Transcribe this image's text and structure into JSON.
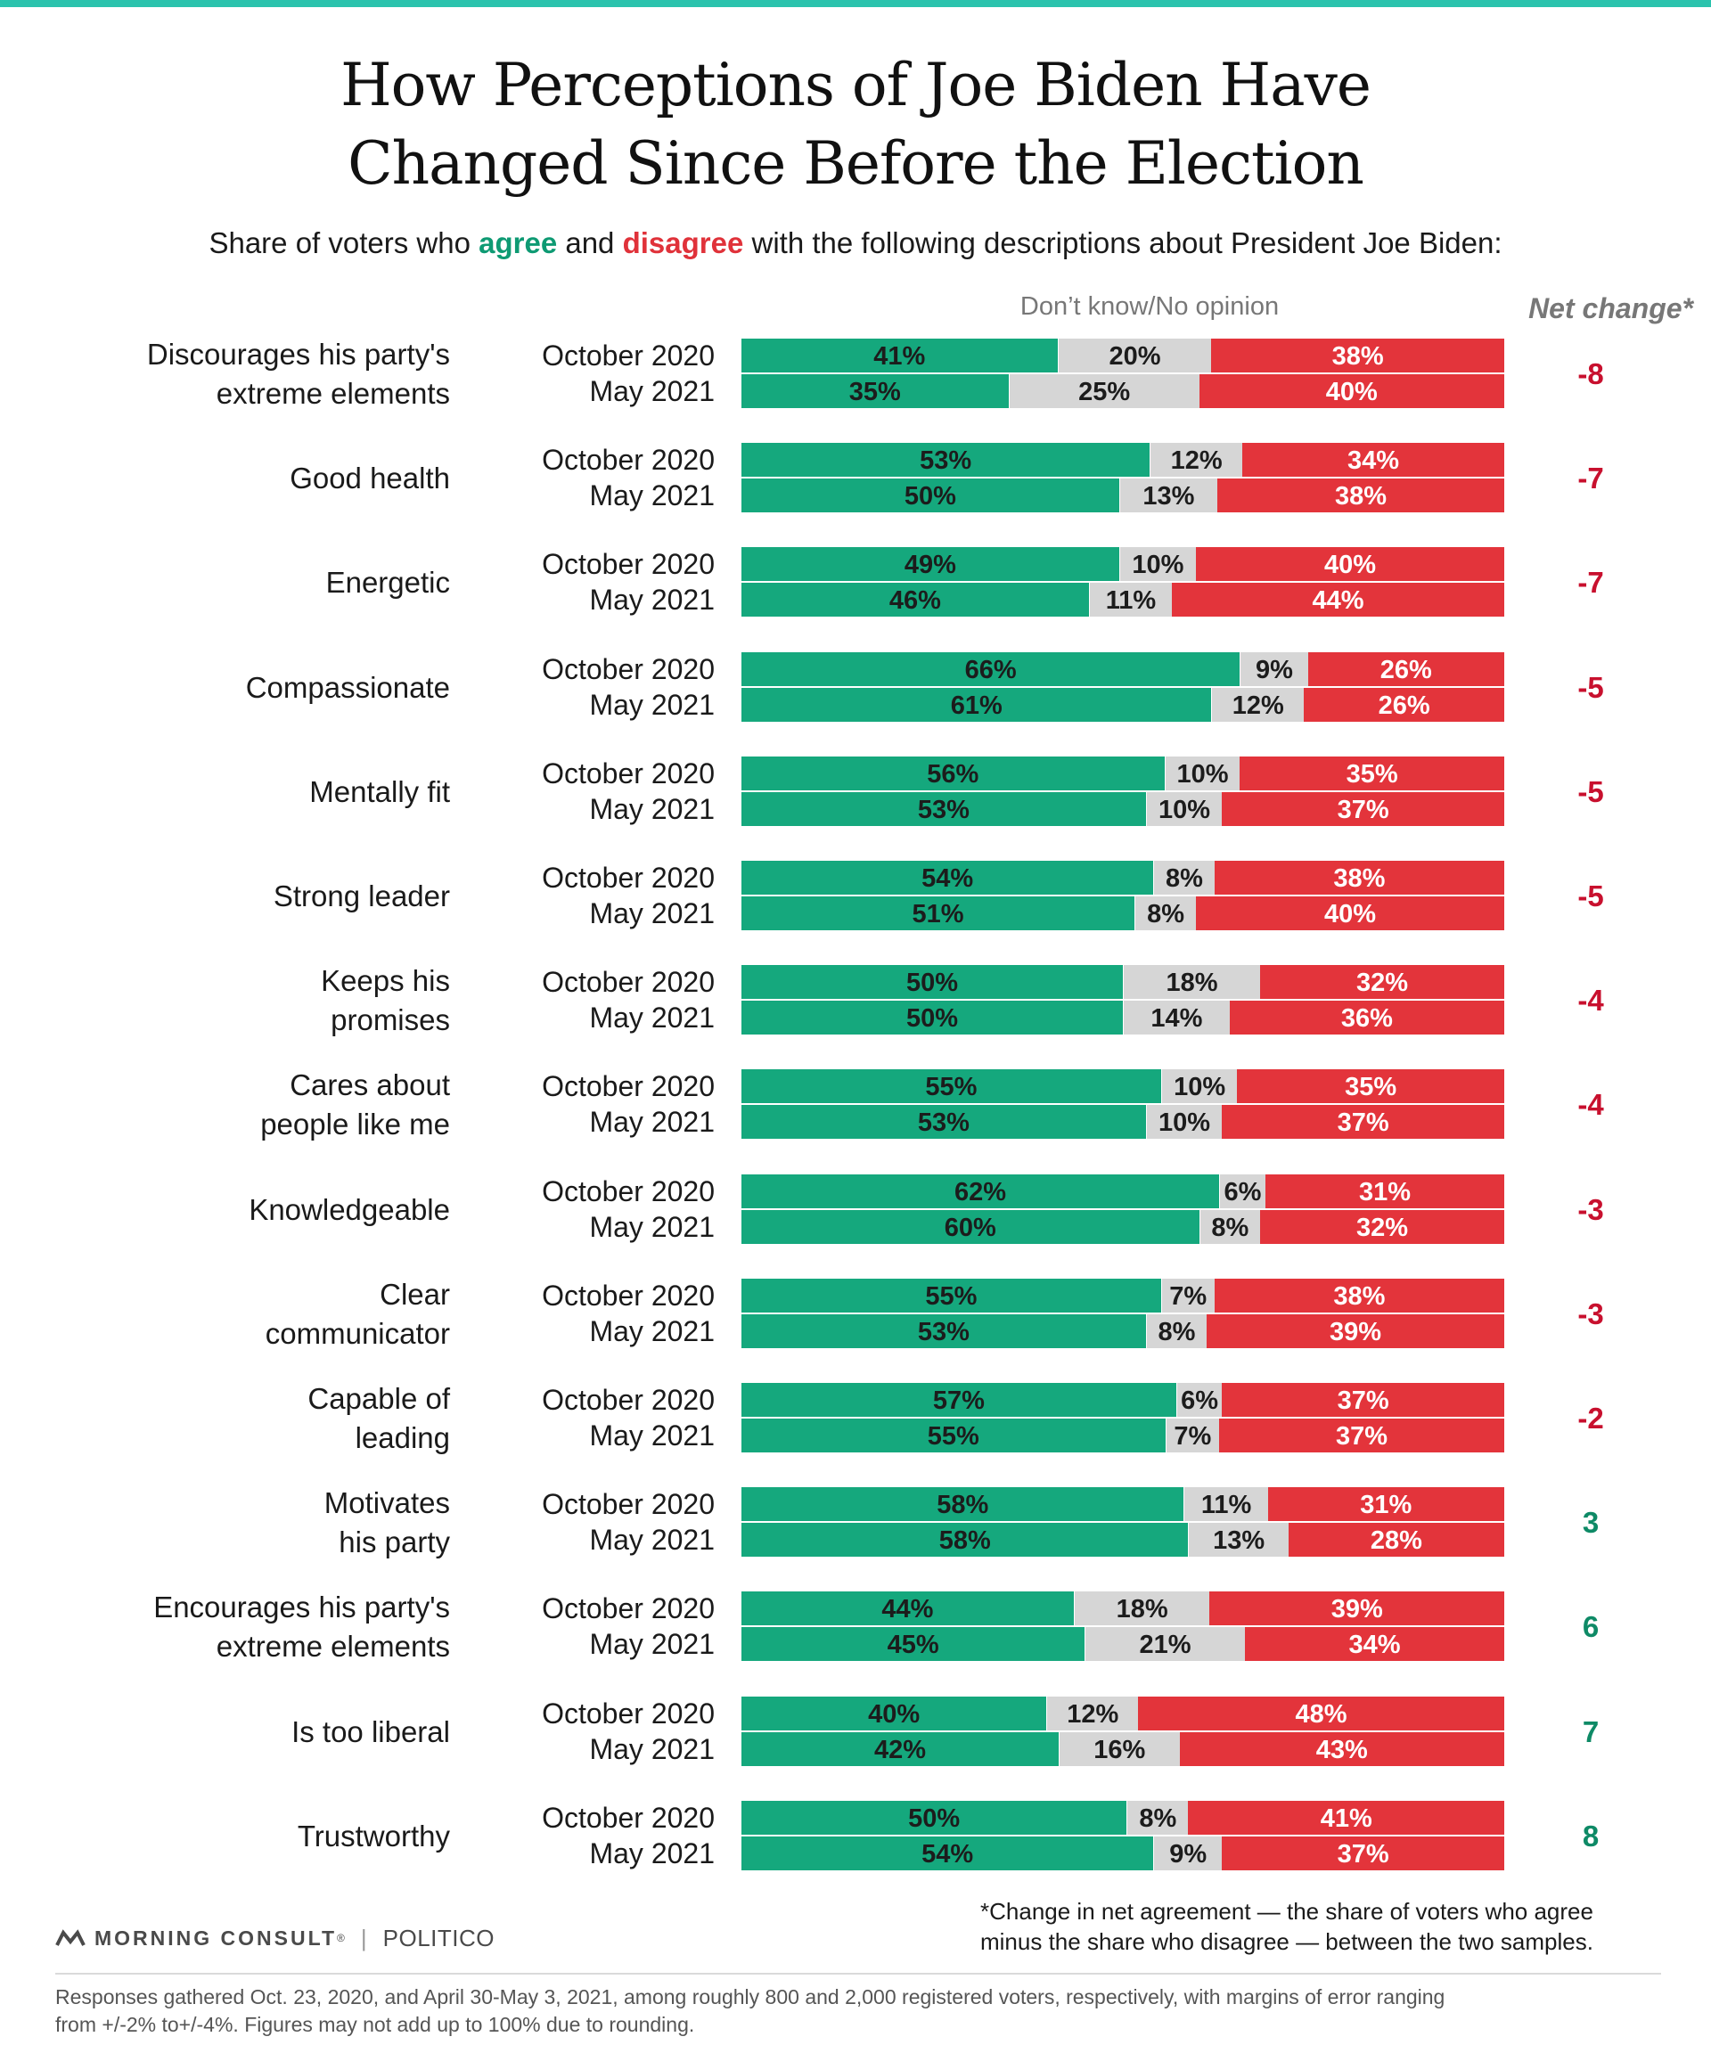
{
  "title_line1": "How Perceptions of Joe Biden Have",
  "title_line2": "Changed Since Before the Election",
  "subtitle": {
    "prefix": "Share of voters who ",
    "agree": "agree",
    "and": " and ",
    "disagree": "disagree",
    "suffix": " with the following descriptions about President Joe Biden:"
  },
  "header_dont_know": "Don’t know/No opinion",
  "header_net_change": "Net change*",
  "chart_data": {
    "type": "bar",
    "orientation": "horizontal-stacked",
    "series_names": [
      "agree",
      "Don’t know/No opinion",
      "disagree"
    ],
    "colors": {
      "agree": "#15a87d",
      "dont_know": "#d6d6d6",
      "disagree": "#e3343b",
      "net_negative": "#c8102e",
      "net_positive": "#0e8a66"
    },
    "period_labels": [
      "October 2020",
      "May 2021"
    ],
    "groups": [
      {
        "label": [
          "Discourages his party's",
          "extreme elements"
        ],
        "net": "-8",
        "rows": [
          {
            "agree": 41,
            "dk": 20,
            "disagree": 38
          },
          {
            "agree": 35,
            "dk": 25,
            "disagree": 40
          }
        ]
      },
      {
        "label": [
          "Good health"
        ],
        "net": "-7",
        "rows": [
          {
            "agree": 53,
            "dk": 12,
            "disagree": 34
          },
          {
            "agree": 50,
            "dk": 13,
            "disagree": 38
          }
        ]
      },
      {
        "label": [
          "Energetic"
        ],
        "net": "-7",
        "rows": [
          {
            "agree": 49,
            "dk": 10,
            "disagree": 40
          },
          {
            "agree": 46,
            "dk": 11,
            "disagree": 44
          }
        ]
      },
      {
        "label": [
          "Compassionate"
        ],
        "net": "-5",
        "rows": [
          {
            "agree": 66,
            "dk": 9,
            "disagree": 26
          },
          {
            "agree": 61,
            "dk": 12,
            "disagree": 26
          }
        ]
      },
      {
        "label": [
          "Mentally fit"
        ],
        "net": "-5",
        "rows": [
          {
            "agree": 56,
            "dk": 10,
            "disagree": 35
          },
          {
            "agree": 53,
            "dk": 10,
            "disagree": 37
          }
        ]
      },
      {
        "label": [
          "Strong leader"
        ],
        "net": "-5",
        "rows": [
          {
            "agree": 54,
            "dk": 8,
            "disagree": 38
          },
          {
            "agree": 51,
            "dk": 8,
            "disagree": 40
          }
        ]
      },
      {
        "label": [
          "Keeps his",
          "promises"
        ],
        "net": "-4",
        "rows": [
          {
            "agree": 50,
            "dk": 18,
            "disagree": 32
          },
          {
            "agree": 50,
            "dk": 14,
            "disagree": 36
          }
        ]
      },
      {
        "label": [
          "Cares about",
          "people like me"
        ],
        "net": "-4",
        "rows": [
          {
            "agree": 55,
            "dk": 10,
            "disagree": 35
          },
          {
            "agree": 53,
            "dk": 10,
            "disagree": 37
          }
        ]
      },
      {
        "label": [
          "Knowledgeable"
        ],
        "net": "-3",
        "rows": [
          {
            "agree": 62,
            "dk": 6,
            "disagree": 31
          },
          {
            "agree": 60,
            "dk": 8,
            "disagree": 32
          }
        ]
      },
      {
        "label": [
          "Clear",
          "communicator"
        ],
        "net": "-3",
        "rows": [
          {
            "agree": 55,
            "dk": 7,
            "disagree": 38
          },
          {
            "agree": 53,
            "dk": 8,
            "disagree": 39
          }
        ]
      },
      {
        "label": [
          "Capable of",
          "leading"
        ],
        "net": "-2",
        "rows": [
          {
            "agree": 57,
            "dk": 6,
            "disagree": 37
          },
          {
            "agree": 55,
            "dk": 7,
            "disagree": 37
          }
        ]
      },
      {
        "label": [
          "Motivates",
          "his party"
        ],
        "net": "3",
        "rows": [
          {
            "agree": 58,
            "dk": 11,
            "disagree": 31
          },
          {
            "agree": 58,
            "dk": 13,
            "disagree": 28
          }
        ]
      },
      {
        "label": [
          "Encourages his party's",
          "extreme elements"
        ],
        "net": "6",
        "rows": [
          {
            "agree": 44,
            "dk": 18,
            "disagree": 39
          },
          {
            "agree": 45,
            "dk": 21,
            "disagree": 34
          }
        ]
      },
      {
        "label": [
          "Is too liberal"
        ],
        "net": "7",
        "rows": [
          {
            "agree": 40,
            "dk": 12,
            "disagree": 48
          },
          {
            "agree": 42,
            "dk": 16,
            "disagree": 43
          }
        ]
      },
      {
        "label": [
          "Trustworthy"
        ],
        "net": "8",
        "rows": [
          {
            "agree": 50,
            "dk": 8,
            "disagree": 41
          },
          {
            "agree": 54,
            "dk": 9,
            "disagree": 37
          }
        ]
      }
    ]
  },
  "footnote_line1": "*Change in net agreement — the share of voters who agree",
  "footnote_line2": "minus the share who disagree — between the two samples.",
  "logo_morning_consult": "MORNING CONSULT",
  "logo_tm": "®",
  "logo_separator": "|",
  "logo_politico": "POLITICO",
  "sources_line1": "Responses gathered Oct. 23, 2020, and April 30-May 3, 2021, among roughly 800 and 2,000 registered voters, respectively, with margins of error ranging",
  "sources_line2": "from +/-2% to+/-4%. Figures may not add up to 100% due to rounding."
}
